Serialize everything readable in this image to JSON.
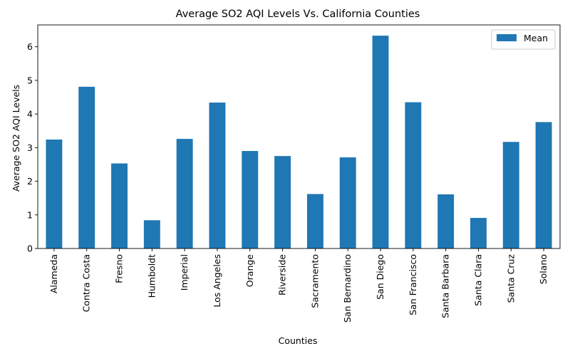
{
  "chart_data": {
    "type": "bar",
    "title": "Average SO2 AQI Levels Vs. California Counties",
    "xlabel": "Counties",
    "ylabel": "Average SO2 AQI Levels",
    "categories": [
      "Alameda",
      "Contra Costa",
      "Fresno",
      "Humboldt",
      "Imperial",
      "Los Angeles",
      "Orange",
      "Riverside",
      "Sacramento",
      "San Bernardino",
      "San Diego",
      "San Francisco",
      "Santa Barbara",
      "Santa Clara",
      "Santa Cruz",
      "Solano"
    ],
    "series": [
      {
        "name": "Mean",
        "color": "#1f77b4",
        "values": [
          3.24,
          4.81,
          2.53,
          0.84,
          3.26,
          4.34,
          2.9,
          2.75,
          1.62,
          2.71,
          6.33,
          4.35,
          1.61,
          0.91,
          3.17,
          3.76
        ]
      }
    ],
    "yticks": [
      0,
      1,
      2,
      3,
      4,
      5,
      6
    ],
    "ylim": [
      0,
      6.65
    ],
    "grid": false,
    "legend": {
      "placement": "top-right",
      "entries": [
        "Mean"
      ]
    }
  }
}
